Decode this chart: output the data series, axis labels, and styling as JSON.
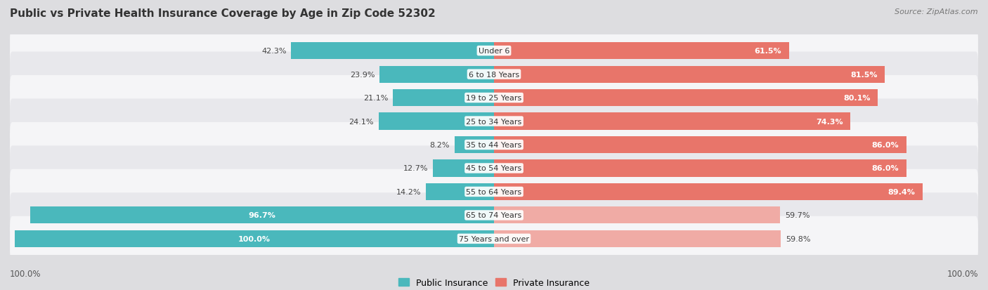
{
  "title": "Public vs Private Health Insurance Coverage by Age in Zip Code 52302",
  "source": "Source: ZipAtlas.com",
  "categories": [
    "Under 6",
    "6 to 18 Years",
    "19 to 25 Years",
    "25 to 34 Years",
    "35 to 44 Years",
    "45 to 54 Years",
    "55 to 64 Years",
    "65 to 74 Years",
    "75 Years and over"
  ],
  "public_values": [
    42.3,
    23.9,
    21.1,
    24.1,
    8.2,
    12.7,
    14.2,
    96.7,
    100.0
  ],
  "private_values": [
    61.5,
    81.5,
    80.1,
    74.3,
    86.0,
    86.0,
    89.4,
    59.7,
    59.8
  ],
  "public_color": "#4ab8bc",
  "private_color_dark": "#e8756a",
  "private_color_light": "#f0aba5",
  "bg_color": "#dddde0",
  "row_color_odd": "#f5f5f7",
  "row_color_even": "#e8e8ec",
  "title_fontsize": 11,
  "bar_height": 0.72,
  "max_value": 100.0,
  "left_axis_label": "100.0%",
  "right_axis_label": "100.0%"
}
